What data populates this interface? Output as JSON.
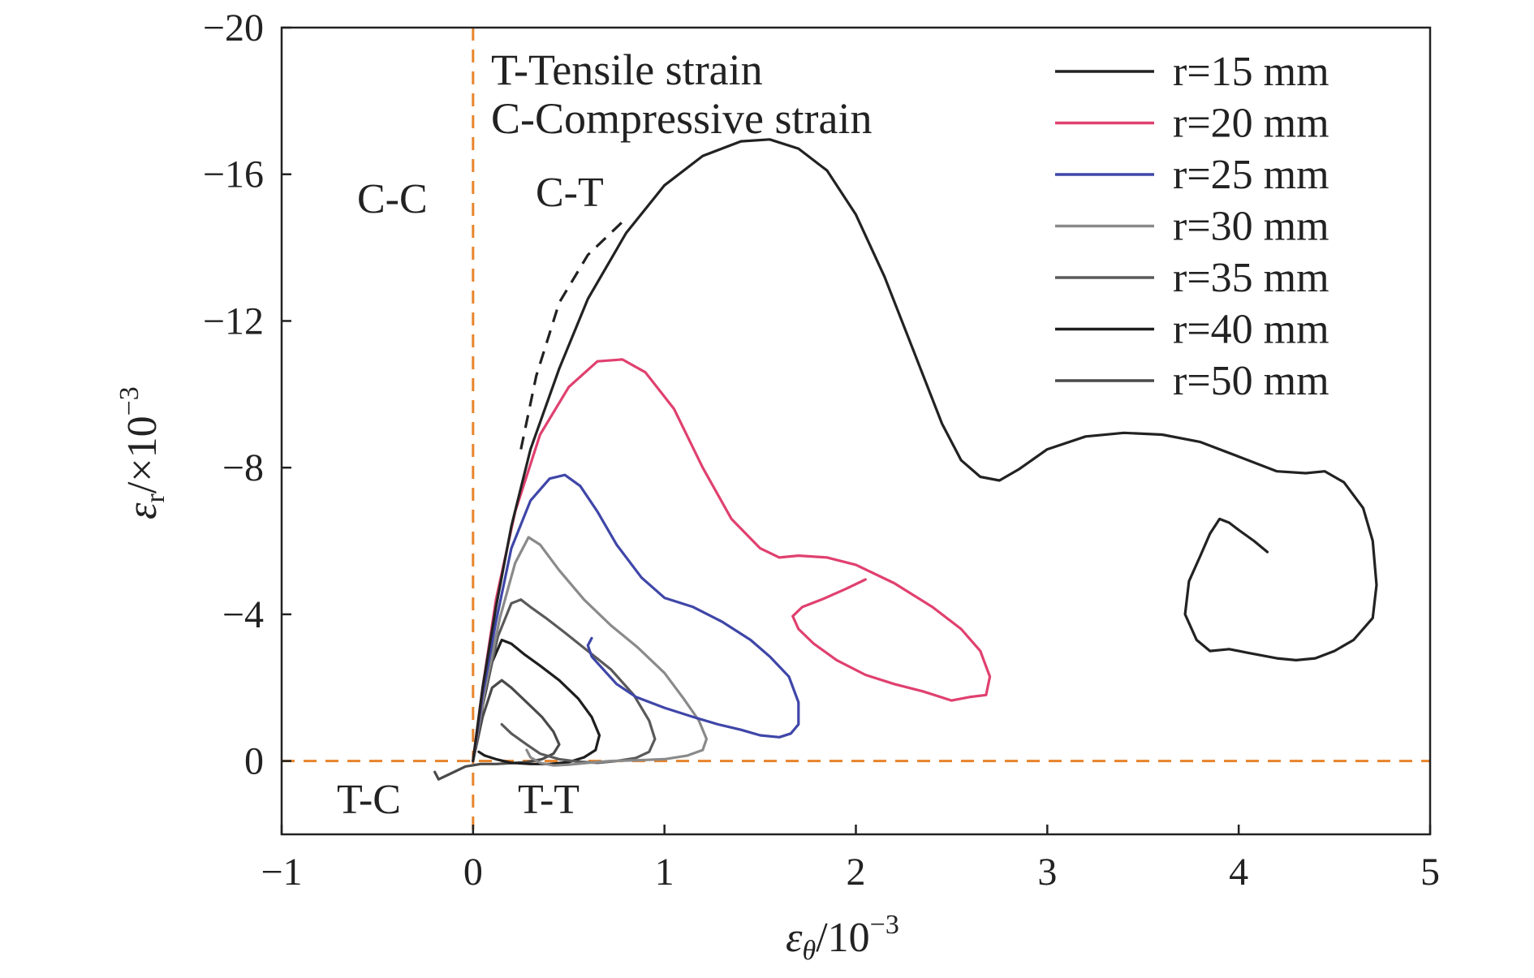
{
  "chart_data": {
    "type": "line",
    "xlabel_symbol": "ε",
    "xlabel_sub": "θ",
    "xlabel_unit": "/10",
    "xlabel_exp": "−3",
    "ylabel_symbol": "ε",
    "ylabel_sub": "r",
    "ylabel_unit": "/×10",
    "ylabel_exp": "−3",
    "xlim": [
      -1,
      5
    ],
    "ylim": [
      2,
      -20
    ],
    "y_axis_inverted": true,
    "x_ticks": [
      {
        "value": -1,
        "label": "−1"
      },
      {
        "value": 0,
        "label": "0"
      },
      {
        "value": 1,
        "label": "1"
      },
      {
        "value": 2,
        "label": "2"
      },
      {
        "value": 3,
        "label": "3"
      },
      {
        "value": 4,
        "label": "4"
      },
      {
        "value": 5,
        "label": "5"
      }
    ],
    "y_ticks": [
      {
        "value": -20,
        "label": "−20"
      },
      {
        "value": -16,
        "label": "−16"
      },
      {
        "value": -12,
        "label": "−12"
      },
      {
        "value": -8,
        "label": "−8"
      },
      {
        "value": -4,
        "label": "−4"
      },
      {
        "value": 0,
        "label": "0"
      }
    ],
    "grid": false,
    "legend_position": "top-right",
    "annotations": {
      "tensile": "T-Tensile strain",
      "compressive": "C-Compressive strain"
    },
    "quadrant_labels": {
      "cc": "C-C",
      "ct": "C-T",
      "tc": "T-C",
      "tt": "T-T"
    },
    "reference_lines": {
      "color": "#e8842a",
      "x_zero": 0,
      "y_zero": 0
    },
    "boundary_curve": {
      "color": "#222222",
      "x": [
        0.25,
        0.33,
        0.45,
        0.6,
        0.8
      ],
      "y": [
        -8.5,
        -10.5,
        -12.5,
        -13.8,
        -14.8
      ]
    },
    "series": [
      {
        "name": "r=15 mm",
        "color": "#222222",
        "x": [
          0.0,
          0.05,
          0.12,
          0.2,
          0.3,
          0.45,
          0.6,
          0.8,
          1.0,
          1.2,
          1.4,
          1.55,
          1.7,
          1.85,
          2.0,
          2.15,
          2.3,
          2.45,
          2.55,
          2.65,
          2.75,
          2.85,
          3.0,
          3.2,
          3.4,
          3.6,
          3.8,
          4.0,
          4.2,
          4.35,
          4.45,
          4.55,
          4.65,
          4.7,
          4.72,
          4.7,
          4.6,
          4.5,
          4.4,
          4.3,
          4.2,
          4.05,
          3.95,
          3.85,
          3.78,
          3.72,
          3.74,
          3.8,
          3.85,
          3.9,
          3.95,
          4.0,
          4.08,
          4.15
        ],
        "y": [
          0,
          -2.0,
          -4.2,
          -6.4,
          -8.5,
          -10.7,
          -12.6,
          -14.4,
          -15.7,
          -16.5,
          -16.9,
          -16.95,
          -16.7,
          -16.1,
          -14.9,
          -13.2,
          -11.2,
          -9.2,
          -8.2,
          -7.75,
          -7.65,
          -7.95,
          -8.5,
          -8.85,
          -8.95,
          -8.9,
          -8.7,
          -8.3,
          -7.9,
          -7.85,
          -7.9,
          -7.6,
          -6.9,
          -6.0,
          -4.8,
          -3.9,
          -3.3,
          -3.0,
          -2.8,
          -2.75,
          -2.8,
          -2.95,
          -3.05,
          -3.0,
          -3.3,
          -4.0,
          -4.9,
          -5.6,
          -6.2,
          -6.6,
          -6.5,
          -6.3,
          -6.0,
          -5.7
        ]
      },
      {
        "name": "r=20 mm",
        "color": "#e0406f",
        "x": [
          0.0,
          0.05,
          0.12,
          0.22,
          0.35,
          0.5,
          0.65,
          0.78,
          0.9,
          1.05,
          1.2,
          1.35,
          1.5,
          1.6,
          1.7,
          1.85,
          2.0,
          2.2,
          2.4,
          2.55,
          2.65,
          2.7,
          2.68,
          2.6,
          2.5,
          2.35,
          2.2,
          2.05,
          1.9,
          1.78,
          1.7,
          1.67,
          1.72,
          1.82,
          1.95,
          2.05
        ],
        "y": [
          0,
          -2.0,
          -4.4,
          -6.8,
          -8.9,
          -10.2,
          -10.9,
          -10.95,
          -10.6,
          -9.6,
          -8.0,
          -6.6,
          -5.8,
          -5.55,
          -5.6,
          -5.55,
          -5.35,
          -4.85,
          -4.2,
          -3.6,
          -3.0,
          -2.3,
          -1.8,
          -1.75,
          -1.65,
          -1.9,
          -2.1,
          -2.35,
          -2.75,
          -3.2,
          -3.6,
          -3.95,
          -4.2,
          -4.4,
          -4.7,
          -4.95
        ]
      },
      {
        "name": "r=25 mm",
        "color": "#3f46a8",
        "x": [
          0.0,
          0.05,
          0.12,
          0.2,
          0.3,
          0.4,
          0.48,
          0.56,
          0.65,
          0.75,
          0.88,
          1.0,
          1.15,
          1.3,
          1.45,
          1.55,
          1.65,
          1.7,
          1.7,
          1.66,
          1.6,
          1.5,
          1.4,
          1.28,
          1.15,
          1.0,
          0.85,
          0.75,
          0.68,
          0.62,
          0.6,
          0.62
        ],
        "y": [
          0,
          -1.8,
          -3.8,
          -5.8,
          -7.1,
          -7.7,
          -7.8,
          -7.5,
          -6.8,
          -5.9,
          -5.0,
          -4.45,
          -4.2,
          -3.8,
          -3.3,
          -2.85,
          -2.3,
          -1.6,
          -1.0,
          -0.75,
          -0.65,
          -0.7,
          -0.85,
          -1.0,
          -1.2,
          -1.45,
          -1.75,
          -2.1,
          -2.5,
          -2.85,
          -3.15,
          -3.35
        ]
      },
      {
        "name": "r=30 mm",
        "color": "#8a8a8a",
        "x": [
          0.0,
          0.06,
          0.14,
          0.22,
          0.29,
          0.35,
          0.45,
          0.58,
          0.72,
          0.86,
          1.0,
          1.1,
          1.18,
          1.22,
          1.2,
          1.12,
          1.0,
          0.86,
          0.72,
          0.6,
          0.5,
          0.42,
          0.35,
          0.3,
          0.28
        ],
        "y": [
          0,
          -1.9,
          -3.9,
          -5.4,
          -6.1,
          -5.9,
          -5.2,
          -4.4,
          -3.7,
          -3.1,
          -2.4,
          -1.7,
          -1.1,
          -0.6,
          -0.3,
          -0.15,
          -0.05,
          -0.02,
          0.0,
          0.05,
          0.1,
          0.12,
          0.05,
          -0.1,
          -0.3
        ]
      },
      {
        "name": "r=35 mm",
        "color": "#5a5a5a",
        "x": [
          0.0,
          0.06,
          0.13,
          0.2,
          0.25,
          0.3,
          0.38,
          0.48,
          0.6,
          0.72,
          0.84,
          0.92,
          0.95,
          0.92,
          0.85,
          0.75,
          0.65,
          0.55,
          0.45,
          0.35,
          0.28,
          0.2,
          0.15
        ],
        "y": [
          0,
          -1.8,
          -3.4,
          -4.3,
          -4.4,
          -4.2,
          -3.9,
          -3.5,
          -3.0,
          -2.5,
          -1.8,
          -1.1,
          -0.6,
          -0.25,
          -0.08,
          0.0,
          0.05,
          0.02,
          -0.05,
          -0.2,
          -0.45,
          -0.75,
          -1.0
        ]
      },
      {
        "name": "r=40 mm",
        "color": "#1e1e1e",
        "x": [
          0.0,
          0.05,
          0.1,
          0.15,
          0.2,
          0.27,
          0.35,
          0.45,
          0.55,
          0.62,
          0.66,
          0.64,
          0.58,
          0.5,
          0.4,
          0.3,
          0.2,
          0.12,
          0.06,
          0.03
        ],
        "y": [
          0,
          -1.5,
          -2.7,
          -3.3,
          -3.2,
          -2.9,
          -2.6,
          -2.2,
          -1.7,
          -1.2,
          -0.7,
          -0.3,
          -0.1,
          0.03,
          0.08,
          0.08,
          0.05,
          -0.05,
          -0.15,
          -0.25
        ]
      },
      {
        "name": "r=50 mm",
        "color": "#4a4a4a",
        "x": [
          0.0,
          0.05,
          0.1,
          0.15,
          0.2,
          0.28,
          0.36,
          0.42,
          0.45,
          0.42,
          0.36,
          0.28,
          0.2,
          0.12,
          0.04,
          -0.04,
          -0.12,
          -0.18,
          -0.2
        ],
        "y": [
          0,
          -1.2,
          -2.0,
          -2.2,
          -2.0,
          -1.6,
          -1.2,
          -0.8,
          -0.45,
          -0.2,
          -0.05,
          0.03,
          0.06,
          0.08,
          0.08,
          0.15,
          0.35,
          0.5,
          0.3
        ]
      }
    ]
  }
}
